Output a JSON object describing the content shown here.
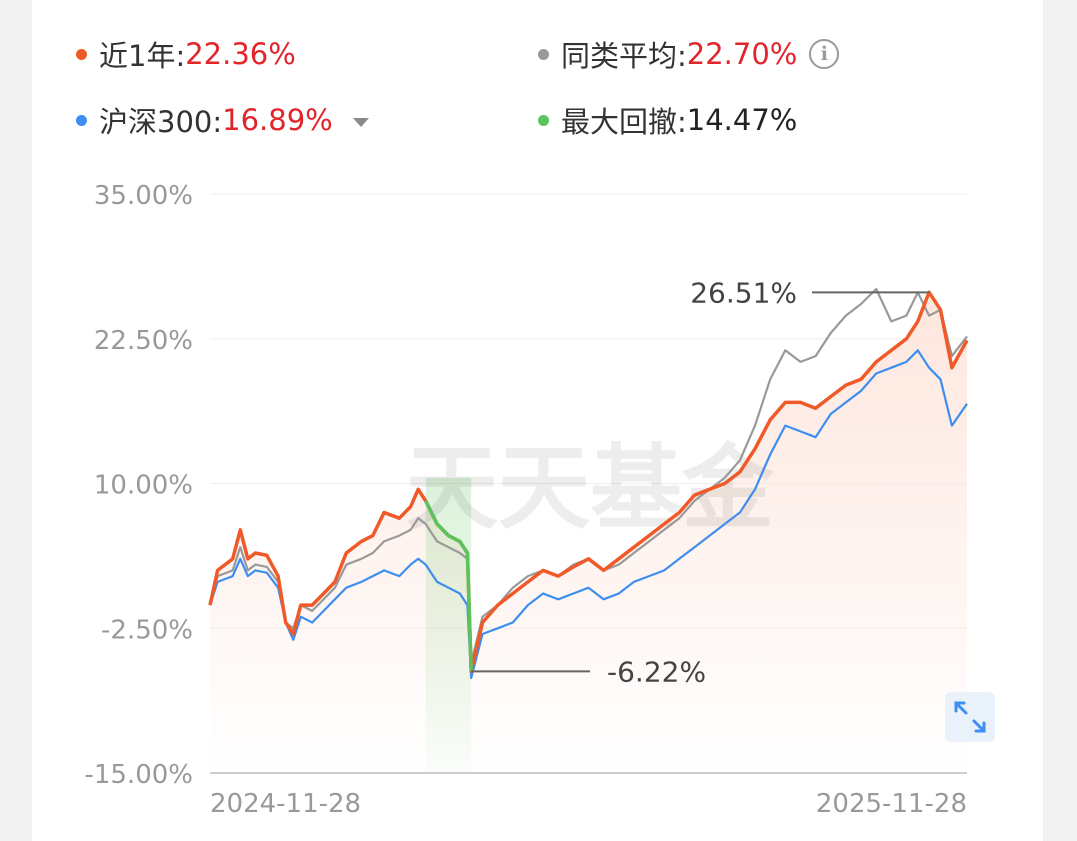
{
  "legend": {
    "fund": {
      "label": "近1年:",
      "value": "22.36%",
      "color": "#f05a28"
    },
    "peer": {
      "label": "同类平均:",
      "value": "22.70%",
      "color": "#999999"
    },
    "index": {
      "label": "沪深300:",
      "value": "16.89%",
      "color": "#3d8ef0"
    },
    "drawdown": {
      "label": "最大回撤:",
      "value": "14.47%",
      "color": "#5cc35c"
    }
  },
  "watermark": "天天基金",
  "icons": {
    "info": "info-icon",
    "dropdown": "caret-down-icon",
    "expand": "expand-icon"
  },
  "chart_data": {
    "type": "line",
    "ylim": [
      -15,
      35
    ],
    "yticks": [
      35,
      22.5,
      10,
      -2.5,
      -15
    ],
    "ytick_labels": [
      "35.00%",
      "22.50%",
      "10.00%",
      "-2.50%",
      "-15.00%"
    ],
    "x_start": "2024-11-28",
    "x_end": "2025-11-28",
    "x_labels": [
      "2024-11-28",
      "2025-11-28"
    ],
    "annotations": [
      {
        "text": "26.51%",
        "x": 0.95,
        "y": 26.51
      },
      {
        "text": "-6.22%",
        "x": 0.345,
        "y": -6.22
      }
    ],
    "drawdown_range": {
      "start_x": 0.285,
      "end_x": 0.345
    },
    "series": [
      {
        "key": "fund",
        "color": "#f05a28",
        "x": [
          0,
          0.01,
          0.03,
          0.04,
          0.05,
          0.06,
          0.075,
          0.09,
          0.1,
          0.11,
          0.12,
          0.135,
          0.15,
          0.165,
          0.18,
          0.2,
          0.215,
          0.23,
          0.25,
          0.265,
          0.275,
          0.285,
          0.3,
          0.315,
          0.33,
          0.34,
          0.345,
          0.36,
          0.38,
          0.4,
          0.42,
          0.44,
          0.46,
          0.48,
          0.5,
          0.52,
          0.54,
          0.56,
          0.58,
          0.6,
          0.62,
          0.64,
          0.66,
          0.68,
          0.7,
          0.72,
          0.74,
          0.76,
          0.78,
          0.8,
          0.82,
          0.84,
          0.86,
          0.88,
          0.9,
          0.92,
          0.935,
          0.95,
          0.965,
          0.98,
          1.0
        ],
        "y": [
          -0.5,
          2.5,
          3.5,
          6.0,
          3.5,
          4.0,
          3.8,
          2.0,
          -2.0,
          -3.0,
          -0.5,
          -0.5,
          0.5,
          1.5,
          4.0,
          5.0,
          5.5,
          7.5,
          7.0,
          8.0,
          9.5,
          8.5,
          6.5,
          5.5,
          5.0,
          4.0,
          -6.22,
          -2.0,
          -0.5,
          0.5,
          1.5,
          2.5,
          2.0,
          2.8,
          3.5,
          2.5,
          3.5,
          4.5,
          5.5,
          6.5,
          7.5,
          9.0,
          9.5,
          10.0,
          11.0,
          13.0,
          15.5,
          17.0,
          17.0,
          16.5,
          17.5,
          18.5,
          19.0,
          20.5,
          21.5,
          22.5,
          24.0,
          26.51,
          25.0,
          20.0,
          22.36
        ]
      },
      {
        "key": "peer",
        "color": "#999999",
        "x": [
          0,
          0.01,
          0.03,
          0.04,
          0.05,
          0.06,
          0.075,
          0.09,
          0.1,
          0.11,
          0.12,
          0.135,
          0.15,
          0.165,
          0.18,
          0.2,
          0.215,
          0.23,
          0.25,
          0.265,
          0.275,
          0.285,
          0.3,
          0.315,
          0.33,
          0.34,
          0.345,
          0.36,
          0.38,
          0.4,
          0.42,
          0.44,
          0.46,
          0.48,
          0.5,
          0.52,
          0.54,
          0.56,
          0.58,
          0.6,
          0.62,
          0.64,
          0.66,
          0.68,
          0.7,
          0.72,
          0.74,
          0.76,
          0.78,
          0.8,
          0.82,
          0.84,
          0.86,
          0.88,
          0.9,
          0.92,
          0.935,
          0.95,
          0.965,
          0.98,
          1.0
        ],
        "y": [
          -0.5,
          2.0,
          2.5,
          4.5,
          2.5,
          3.0,
          2.8,
          1.5,
          -2.0,
          -2.5,
          -0.5,
          -1.0,
          0.0,
          1.0,
          3.0,
          3.5,
          4.0,
          5.0,
          5.5,
          6.0,
          7.0,
          6.5,
          5.0,
          4.5,
          4.0,
          3.5,
          -5.5,
          -1.5,
          -0.5,
          1.0,
          2.0,
          2.5,
          2.0,
          3.0,
          3.5,
          2.5,
          3.0,
          4.0,
          5.0,
          6.0,
          7.0,
          8.5,
          9.5,
          10.5,
          12.0,
          15.0,
          19.0,
          21.5,
          20.5,
          21.0,
          23.0,
          24.5,
          25.5,
          26.8,
          24.0,
          24.5,
          26.5,
          24.5,
          25.0,
          21.0,
          22.7
        ]
      },
      {
        "key": "index",
        "color": "#3d8ef0",
        "x": [
          0,
          0.01,
          0.03,
          0.04,
          0.05,
          0.06,
          0.075,
          0.09,
          0.1,
          0.11,
          0.12,
          0.135,
          0.15,
          0.165,
          0.18,
          0.2,
          0.215,
          0.23,
          0.25,
          0.265,
          0.275,
          0.285,
          0.3,
          0.315,
          0.33,
          0.34,
          0.345,
          0.36,
          0.38,
          0.4,
          0.42,
          0.44,
          0.46,
          0.48,
          0.5,
          0.52,
          0.54,
          0.56,
          0.58,
          0.6,
          0.62,
          0.64,
          0.66,
          0.68,
          0.7,
          0.72,
          0.74,
          0.76,
          0.78,
          0.8,
          0.82,
          0.84,
          0.86,
          0.88,
          0.9,
          0.92,
          0.935,
          0.95,
          0.965,
          0.98,
          1.0
        ],
        "y": [
          -0.5,
          1.5,
          2.0,
          3.5,
          2.0,
          2.5,
          2.3,
          1.0,
          -2.0,
          -3.5,
          -1.5,
          -2.0,
          -1.0,
          0.0,
          1.0,
          1.5,
          2.0,
          2.5,
          2.0,
          3.0,
          3.5,
          3.0,
          1.5,
          1.0,
          0.5,
          -0.5,
          -6.8,
          -3.0,
          -2.5,
          -2.0,
          -0.5,
          0.5,
          0.0,
          0.5,
          1.0,
          0.0,
          0.5,
          1.5,
          2.0,
          2.5,
          3.5,
          4.5,
          5.5,
          6.5,
          7.5,
          9.5,
          12.5,
          15.0,
          14.5,
          14.0,
          16.0,
          17.0,
          18.0,
          19.5,
          20.0,
          20.5,
          21.5,
          20.0,
          19.0,
          15.0,
          16.89
        ]
      }
    ]
  }
}
